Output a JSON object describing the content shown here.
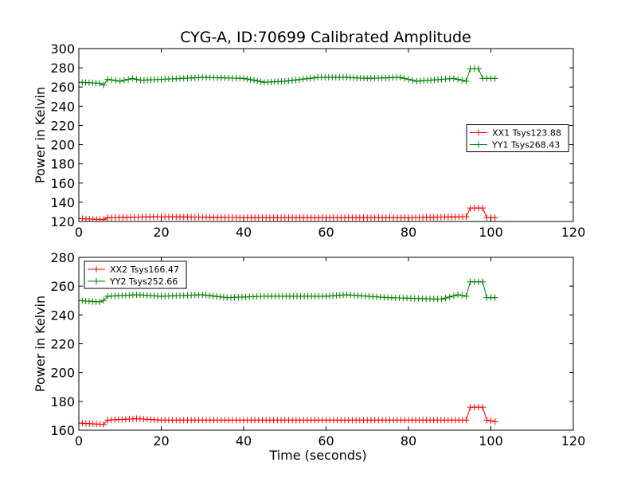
{
  "figure": {
    "title": "CYG-A, ID:70699 Calibrated Amplitude"
  },
  "chart_data": [
    {
      "type": "line",
      "marker": "+",
      "xlabel": "",
      "ylabel": "Power in Kelvin",
      "xlim": [
        0,
        120
      ],
      "ylim": [
        120,
        300
      ],
      "xticks": [
        "0",
        "20",
        "40",
        "60",
        "80",
        "100",
        "120"
      ],
      "yticks": [
        "120",
        "140",
        "160",
        "180",
        "200",
        "220",
        "240",
        "260",
        "280",
        "300"
      ],
      "legend_position": "center-right",
      "series": [
        {
          "name": "XX1 Tsys123.88",
          "color": "#ff0000",
          "x": [
            0,
            6,
            7,
            20,
            40,
            60,
            80,
            94,
            95,
            98,
            99,
            101
          ],
          "y": [
            123,
            122,
            124,
            125,
            124,
            124,
            124,
            125,
            134,
            134,
            124,
            124
          ]
        },
        {
          "name": "YY1 Tsys268.43",
          "color": "#008000",
          "x": [
            0,
            5,
            6,
            7,
            10,
            13,
            15,
            20,
            30,
            40,
            45,
            50,
            58,
            65,
            70,
            78,
            82,
            88,
            91,
            94,
            95,
            97,
            98,
            101
          ],
          "y": [
            265,
            264,
            262,
            268,
            266,
            269,
            267,
            268,
            270,
            269,
            265,
            266,
            270,
            270,
            269,
            270,
            266,
            268,
            269,
            266,
            279,
            279,
            269,
            269
          ]
        }
      ]
    },
    {
      "type": "line",
      "marker": "+",
      "xlabel": "Time (seconds)",
      "ylabel": "Power in Kelvin",
      "xlim": [
        0,
        120
      ],
      "ylim": [
        160,
        280
      ],
      "xticks": [
        "0",
        "20",
        "40",
        "60",
        "80",
        "100",
        "120"
      ],
      "yticks": [
        "160",
        "180",
        "200",
        "220",
        "240",
        "260",
        "280"
      ],
      "legend_position": "top-left",
      "series": [
        {
          "name": "XX2 Tsys166.47",
          "color": "#ff0000",
          "x": [
            0,
            6,
            7,
            14,
            20,
            40,
            60,
            80,
            94,
            95,
            98,
            99,
            101
          ],
          "y": [
            165,
            164,
            167,
            168,
            167,
            167,
            167,
            167,
            167,
            176,
            176,
            167,
            166
          ]
        },
        {
          "name": "YY2 Tsys252.66",
          "color": "#008000",
          "x": [
            0,
            5,
            6,
            7,
            14,
            20,
            30,
            36,
            45,
            60,
            65,
            75,
            88,
            92,
            94,
            95,
            98,
            99,
            101
          ],
          "y": [
            250,
            249,
            250,
            253,
            254,
            253,
            254,
            252,
            253,
            253,
            254,
            252,
            251,
            254,
            253,
            263,
            263,
            252,
            252
          ]
        }
      ]
    }
  ]
}
